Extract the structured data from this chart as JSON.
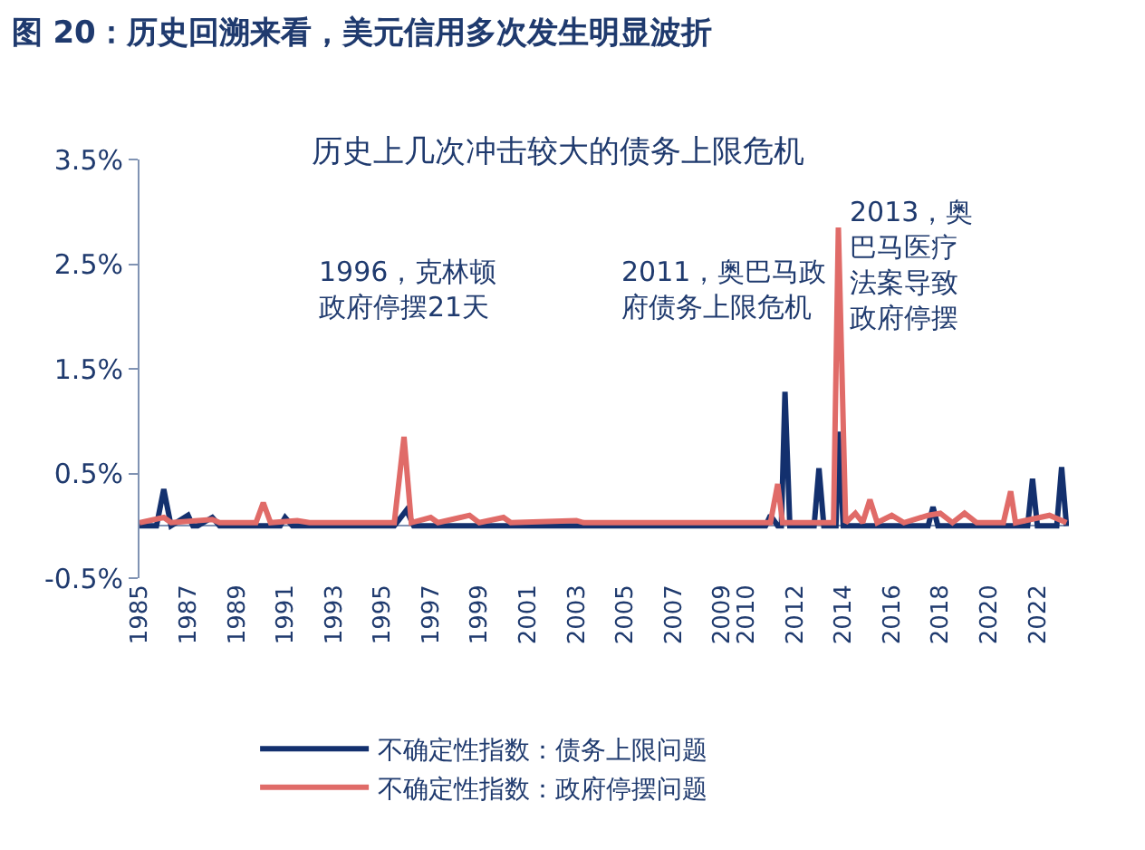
{
  "chart_data": {
    "type": "line",
    "title": "图 20：历史回溯来看，美元信用多次发生明显波折",
    "subtitle": "历史上几次冲击较大的债务上限危机",
    "series": [
      {
        "name": "不确定性指数：债务上限问题",
        "color": "#13306e",
        "x": [
          1985,
          1985.7,
          1986.0,
          1986.3,
          1987.0,
          1987.2,
          1987.4,
          1988.0,
          1988.3,
          1990.8,
          1991.0,
          1991.3,
          1995.5,
          1996.0,
          1996.3,
          2010.8,
          2011.0,
          2011.3,
          2011.45,
          2011.6,
          2011.8,
          2012.8,
          2013.0,
          2013.2,
          2013.7,
          2013.8,
          2014.0,
          2017.5,
          2017.7,
          2017.9,
          2021.6,
          2021.8,
          2022.0,
          2022.8,
          2023.0,
          2023.2
        ],
        "values": [
          0,
          0,
          0.35,
          0,
          0.1,
          0,
          0,
          0.08,
          0,
          0,
          0.08,
          0,
          0,
          0.15,
          0,
          0,
          0.1,
          0,
          0,
          1.28,
          0,
          0,
          0.55,
          0,
          0,
          0.9,
          0,
          0,
          0.18,
          0,
          0,
          0.45,
          0,
          0,
          0.56,
          0
        ]
      },
      {
        "name": "不确定性指数：政府停摆问题",
        "color": "#e06b68",
        "x": [
          1985,
          1986.0,
          1986.3,
          1988.0,
          1988.3,
          1989.8,
          1990.1,
          1990.4,
          1991.5,
          1992.0,
          1995.5,
          1995.9,
          1996.2,
          1997.0,
          1997.3,
          1998.6,
          1999.0,
          2000.0,
          2000.3,
          2003.0,
          2003.3,
          2011.0,
          2011.3,
          2011.5,
          2013.6,
          2013.8,
          2014.1,
          2014.5,
          2014.8,
          2015.1,
          2015.4,
          2016.0,
          2016.5,
          2017.5,
          2018.0,
          2018.5,
          2019.0,
          2019.5,
          2020.6,
          2020.9,
          2021.1,
          2022.5,
          2023.2
        ],
        "values": [
          0.03,
          0.08,
          0.03,
          0.06,
          0.03,
          0.03,
          0.22,
          0.03,
          0.05,
          0.03,
          0.03,
          0.85,
          0.03,
          0.08,
          0.03,
          0.1,
          0.03,
          0.08,
          0.03,
          0.05,
          0.03,
          0.03,
          0.4,
          0.03,
          0.03,
          2.85,
          0.03,
          0.12,
          0.03,
          0.25,
          0.03,
          0.1,
          0.03,
          0.1,
          0.12,
          0.03,
          0.12,
          0.03,
          0.03,
          0.33,
          0.03,
          0.1,
          0.03
        ]
      }
    ],
    "xlim": [
      1985,
      2023.3
    ],
    "xticks": [
      1985,
      1987,
      1989,
      1991,
      1993,
      1995,
      1997,
      1999,
      2001,
      2003,
      2005,
      2007,
      2009,
      2010,
      2012,
      2014,
      2016,
      2018,
      2020,
      2022
    ],
    "ylim": [
      -0.5,
      3.5
    ],
    "yticks": [
      {
        "value": -0.5,
        "label": "-0.5%"
      },
      {
        "value": 0.5,
        "label": "0.5%"
      },
      {
        "value": 1.5,
        "label": "1.5%"
      },
      {
        "value": 2.5,
        "label": "2.5%"
      },
      {
        "value": 3.5,
        "label": "3.5%"
      }
    ],
    "annotations": [
      "1996，克林顿政府停摆21天",
      "2011，奥巴马政府债务上限危机",
      "2013，奥巴马医疗法案导致政府停摆"
    ],
    "legend": "bottom",
    "grid": false,
    "marker": "none",
    "line_style": "solid"
  }
}
